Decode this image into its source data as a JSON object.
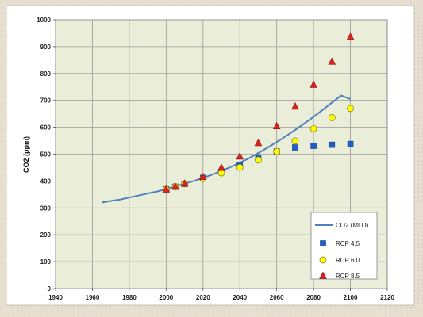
{
  "chart_data": {
    "type": "scatter",
    "ylabel": "CO2 (ppm)",
    "xlabel": "",
    "xlim": [
      1940,
      2120
    ],
    "ylim": [
      0,
      1000
    ],
    "xticks": [
      1940,
      1960,
      1980,
      2000,
      2020,
      2040,
      2060,
      2080,
      2100,
      2120
    ],
    "yticks": [
      0,
      100,
      200,
      300,
      400,
      500,
      600,
      700,
      800,
      900,
      1000
    ],
    "grid": true,
    "legend_position": "bottom-right",
    "series": [
      {
        "name": "CO2 (MLO)",
        "kind": "line",
        "color": "#4f81bd",
        "x": [
          1965,
          1970,
          1975,
          1980,
          1985,
          1990,
          1995,
          2000,
          2005,
          2010,
          2015,
          2020,
          2025,
          2030,
          2035,
          2040,
          2045,
          2050,
          2055,
          2060,
          2065,
          2070,
          2075,
          2080,
          2085,
          2090,
          2095,
          2100
        ],
        "y": [
          320,
          326,
          331,
          339,
          346,
          354,
          361,
          370,
          380,
          390,
          400,
          412,
          424,
          438,
          452,
          468,
          485,
          504,
          524,
          545,
          567,
          590,
          614,
          639,
          665,
          692,
          718,
          705
        ]
      },
      {
        "name": "RCP 4.5",
        "kind": "marker",
        "marker": "square",
        "color": "#1f5fc8",
        "x": [
          2000,
          2005,
          2010,
          2020,
          2030,
          2040,
          2050,
          2060,
          2070,
          2080,
          2090,
          2100
        ],
        "y": [
          369,
          379,
          390,
          412,
          435,
          460,
          487,
          510,
          525,
          531,
          535,
          538
        ]
      },
      {
        "name": "RCP 6.0",
        "kind": "marker",
        "marker": "circle",
        "color": "#ffff00",
        "x": [
          2000,
          2005,
          2010,
          2020,
          2030,
          2040,
          2050,
          2060,
          2070,
          2080,
          2090,
          2100
        ],
        "y": [
          369,
          379,
          390,
          409,
          430,
          451,
          478,
          510,
          549,
          595,
          636,
          670
        ]
      },
      {
        "name": "RCP 8.5",
        "kind": "marker",
        "marker": "triangle",
        "color": "#e02020",
        "x": [
          2000,
          2005,
          2010,
          2020,
          2030,
          2040,
          2050,
          2060,
          2070,
          2080,
          2090,
          2100
        ],
        "y": [
          369,
          379,
          390,
          415,
          449,
          491,
          541,
          604,
          677,
          758,
          844,
          936
        ]
      }
    ]
  }
}
